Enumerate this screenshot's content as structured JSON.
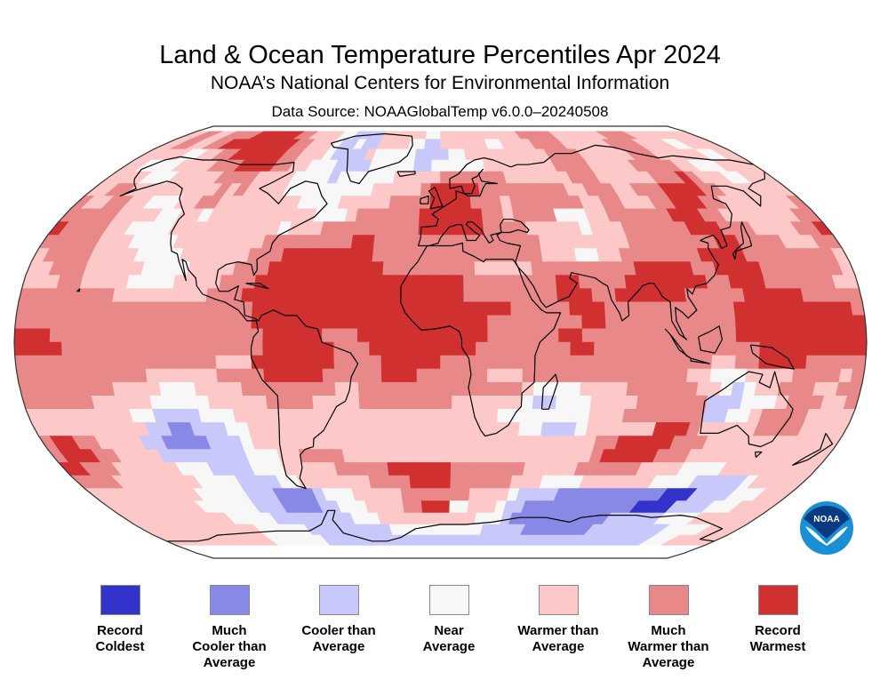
{
  "header": {
    "title": "Land & Ocean Temperature Percentiles Apr 2024",
    "subtitle": "NOAA’s National Centers for Environmental Information",
    "source": "Data Source: NOAAGlobalTemp v6.0.0–20240508"
  },
  "logo": {
    "text": "NOAA",
    "icon": "noaa-logo-icon"
  },
  "legend": [
    {
      "label_lines": [
        "Record",
        "Coldest"
      ],
      "color": "#3333cc"
    },
    {
      "label_lines": [
        "Much",
        "Cooler than",
        "Average"
      ],
      "color": "#8888e6"
    },
    {
      "label_lines": [
        "Cooler than",
        "Average"
      ],
      "color": "#c8c8fa"
    },
    {
      "label_lines": [
        "Near",
        "Average"
      ],
      "color": "#f7f7f7"
    },
    {
      "label_lines": [
        "Warmer than",
        "Average"
      ],
      "color": "#fcc8c8"
    },
    {
      "label_lines": [
        "Much",
        "Warmer than",
        "Average"
      ],
      "color": "#e88888"
    },
    {
      "label_lines": [
        "Record",
        "Warmest"
      ],
      "color": "#d03030"
    }
  ],
  "chart_data": {
    "type": "heatmap",
    "title": "Land & Ocean Temperature Percentiles Apr 2024",
    "projection": "Robinson",
    "grid_resolution_deg": 5,
    "categories": [
      "Record Coldest",
      "Much Cooler than Average",
      "Cooler than Average",
      "Near Average",
      "Warmer than Average",
      "Much Warmer than Average",
      "Record Warmest"
    ],
    "encoding": "rows from 90N to 90S, columns from 180W to 180E; digit = category index (1-7), 0 = no data",
    "rows": [
      "000000000000000000000000000000000000000000000000000000000000000000000000",
      "556655666677777766555544333355555544555555555556666655555556666555555555",
      "556655667777777776655543343355554433555555445555666655555566665555445555",
      "555554455667777776655543333544444333344555555555566665555556665555554455",
      "554444555566677776655444333344444334444445555555566665555566666554445555",
      "555544455555666655554444344444455555666666655555556665555556667655544555",
      "556655555555565655554444444445555567777766666666655666556667777665555555",
      "655665544455665555555544445555566667777666566666665566555667776655555556",
      "666665555445545555555555444566666677777766566664445566666677766555555566",
      "766665544445555555555455566666666677777766665555545556666667776665555667",
      "666665554444555555556666666677666666666666666555555556666666677666655566",
      "566665555444455555566677777777666666666666666555445566666667777666666665",
      "556665555544445555666777777777766666666555556666666667777766777766666665",
      "555665555444455556667777777777777777776666666677666677777776677766666655",
      "666666665555555566677777777777777777776666666677766777777666667777766666",
      "666666666666666666667777777777777777777777666667776666666666677777777776",
      "666666666666666666667777777777777777777766666666776666666666677777777777",
      "777666666666666666666777776667777777777766666677666666666666677777777777",
      "777766666666666666666777777666777777777666666667766666666666666777777777",
      "666666666666666665557777777666677777666666666666666666666665566777766666",
      "666666666665555556666777776666677766666655566666666666666554445555666656",
      "666666665555444555566666666556666666666666654444555566666655434556665566",
      "666666555554444455555666655556666666655555543344455556666663334445666556",
      "555555555443333444555555555555555555555554444444455566666663344566665555",
      "555555555533223334455555555555555555555555544333455555577765555566665555",
      "677665555332222333455555555555555555555555555555556677777666555555555555",
      "677766555533333333444556666555555555555555555555556777776665555555555555",
      "776665555554443333444555556666677777766666665555566666655554444555555555",
      "666655555555444433334455555556666777766666655544445555555444433333455555",
      "555555555554444433322223444555556666666555543333222222222221113333444555",
      "555555555544444433322223344455556677744555433222222222222111133334445555",
      "555555555555444443333333334445555555555544432222222222233333344445555555",
      "555555555555554444443333333333444444444443333322222222333333333444445555",
      "555555555555554444444333333333333333333333333333333333333333333444555555",
      "000000000000000000000000000000000000000000000000000000000000000000000000",
      "000000000000000000000000000000000000000000000000000000000000000000000000"
    ]
  }
}
